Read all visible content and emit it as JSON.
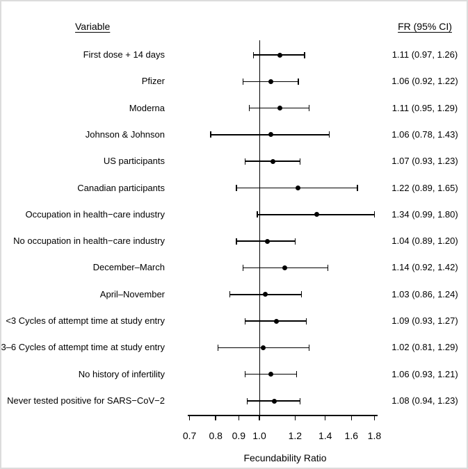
{
  "chart_data": {
    "type": "forest",
    "col_headers": {
      "variable": "Variable",
      "fr_ci": "FR (95% CI)"
    },
    "xlabel": "Fecundability Ratio",
    "x_scale": "log",
    "x_range": [
      0.7,
      1.82
    ],
    "reference_value": 1.0,
    "x_ticks": [
      0.7,
      0.8,
      0.9,
      1.0,
      1.2,
      1.4,
      1.6,
      1.8
    ],
    "x_tick_labels": [
      "0.7",
      "0.8",
      "0.9",
      "1.0",
      "1.2",
      "1.4",
      "1.6",
      "1.8"
    ],
    "marker_color": "#000000",
    "line_color": "#000000",
    "rows": [
      {
        "label": "First dose + 14 days",
        "estimate": 1.11,
        "ci_low": 0.97,
        "ci_high": 1.26,
        "text": "1.11 (0.97, 1.26)"
      },
      {
        "label": "Pfizer",
        "estimate": 1.06,
        "ci_low": 0.92,
        "ci_high": 1.22,
        "text": "1.06 (0.92, 1.22)"
      },
      {
        "label": "Moderna",
        "estimate": 1.11,
        "ci_low": 0.95,
        "ci_high": 1.29,
        "text": "1.11 (0.95, 1.29)"
      },
      {
        "label": "Johnson & Johnson",
        "estimate": 1.06,
        "ci_low": 0.78,
        "ci_high": 1.43,
        "text": "1.06 (0.78, 1.43)"
      },
      {
        "label": "US participants",
        "estimate": 1.07,
        "ci_low": 0.93,
        "ci_high": 1.23,
        "text": "1.07 (0.93, 1.23)"
      },
      {
        "label": "Canadian participants",
        "estimate": 1.22,
        "ci_low": 0.89,
        "ci_high": 1.65,
        "text": "1.22 (0.89, 1.65)"
      },
      {
        "label": "Occupation in health−care industry",
        "estimate": 1.34,
        "ci_low": 0.99,
        "ci_high": 1.8,
        "text": "1.34 (0.99, 1.80)"
      },
      {
        "label": "No occupation in health−care industry",
        "estimate": 1.04,
        "ci_low": 0.89,
        "ci_high": 1.2,
        "text": "1.04 (0.89, 1.20)"
      },
      {
        "label": "December–March",
        "estimate": 1.14,
        "ci_low": 0.92,
        "ci_high": 1.42,
        "text": "1.14 (0.92, 1.42)"
      },
      {
        "label": "April–November",
        "estimate": 1.03,
        "ci_low": 0.86,
        "ci_high": 1.24,
        "text": "1.03 (0.86, 1.24)"
      },
      {
        "label": "<3 Cycles of attempt time at study entry",
        "estimate": 1.09,
        "ci_low": 0.93,
        "ci_high": 1.27,
        "text": "1.09 (0.93, 1.27)"
      },
      {
        "label": "3–6 Cycles of attempt time at study entry",
        "estimate": 1.02,
        "ci_low": 0.81,
        "ci_high": 1.29,
        "text": "1.02 (0.81, 1.29)"
      },
      {
        "label": "No history of infertility",
        "estimate": 1.06,
        "ci_low": 0.93,
        "ci_high": 1.21,
        "text": "1.06 (0.93, 1.21)"
      },
      {
        "label": "Never tested positive for SARS−CoV−2",
        "estimate": 1.08,
        "ci_low": 0.94,
        "ci_high": 1.23,
        "text": "1.08 (0.94, 1.23)"
      }
    ]
  }
}
